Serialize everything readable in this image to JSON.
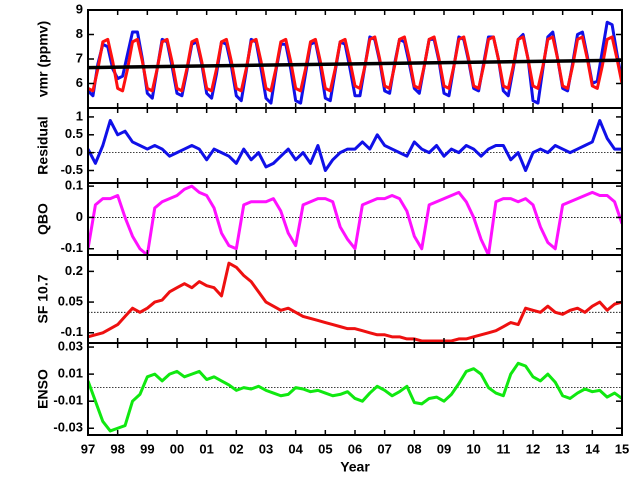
{
  "chart_data": [
    {
      "type": "line",
      "ylabel": "vmr (ppmv)",
      "x": [
        1997,
        1997.167,
        1997.333,
        1997.5,
        1997.667,
        1997.833,
        1998,
        1998.167,
        1998.333,
        1998.5,
        1998.667,
        1998.833,
        1999,
        1999.167,
        1999.333,
        1999.5,
        1999.667,
        1999.833,
        2000,
        2000.167,
        2000.333,
        2000.5,
        2000.667,
        2000.833,
        2001,
        2001.167,
        2001.333,
        2001.5,
        2001.667,
        2001.833,
        2002,
        2002.167,
        2002.333,
        2002.5,
        2002.667,
        2002.833,
        2003,
        2003.167,
        2003.333,
        2003.5,
        2003.667,
        2003.833,
        2004,
        2004.167,
        2004.333,
        2004.5,
        2004.667,
        2004.833,
        2005,
        2005.167,
        2005.333,
        2005.5,
        2005.667,
        2005.833,
        2006,
        2006.167,
        2006.333,
        2006.5,
        2006.667,
        2006.833,
        2007,
        2007.167,
        2007.333,
        2007.5,
        2007.667,
        2007.833,
        2008,
        2008.167,
        2008.333,
        2008.5,
        2008.667,
        2008.833,
        2009,
        2009.167,
        2009.333,
        2009.5,
        2009.667,
        2009.833,
        2010,
        2010.167,
        2010.333,
        2010.5,
        2010.667,
        2010.833,
        2011,
        2011.167,
        2011.333,
        2011.5,
        2011.667,
        2011.833,
        2012,
        2012.167,
        2012.333,
        2012.5,
        2012.667,
        2012.833,
        2013,
        2013.167,
        2013.333,
        2013.5,
        2013.667,
        2013.833,
        2014,
        2014.167,
        2014.333,
        2014.5,
        2014.667,
        2014.833,
        2015
      ],
      "series": [
        {
          "color": "#1010e8",
          "values": [
            5.7,
            5.5,
            6.8,
            7.6,
            7.5,
            6.6,
            6.2,
            6.3,
            7.2,
            8.1,
            8.1,
            7.0,
            5.6,
            5.4,
            6.6,
            7.8,
            7.7,
            6.7,
            5.6,
            5.5,
            6.5,
            7.6,
            7.7,
            6.8,
            5.6,
            5.4,
            6.4,
            7.7,
            7.6,
            6.7,
            5.5,
            5.3,
            6.5,
            7.8,
            7.7,
            6.6,
            5.4,
            5.2,
            6.5,
            7.6,
            7.6,
            6.6,
            5.3,
            5.2,
            6.4,
            7.6,
            7.7,
            6.7,
            5.4,
            5.3,
            6.5,
            7.7,
            7.6,
            6.6,
            5.5,
            5.5,
            6.7,
            7.9,
            7.8,
            6.9,
            5.7,
            5.6,
            6.8,
            7.8,
            7.7,
            6.8,
            5.8,
            5.6,
            6.7,
            7.8,
            7.8,
            6.9,
            5.6,
            5.5,
            6.7,
            7.9,
            7.8,
            6.9,
            5.8,
            5.7,
            6.8,
            7.9,
            7.9,
            7.0,
            5.7,
            5.5,
            6.6,
            7.8,
            8.0,
            7.0,
            5.3,
            5.2,
            6.6,
            7.9,
            8.1,
            7.0,
            5.8,
            5.7,
            6.8,
            8.0,
            8.1,
            7.1,
            6.0,
            6.1,
            7.3,
            8.5,
            8.4,
            7.2,
            6.1
          ]
        },
        {
          "color": "#ff1010",
          "values": [
            5.8,
            5.7,
            6.6,
            7.7,
            7.8,
            6.9,
            5.8,
            5.7,
            6.6,
            7.7,
            7.8,
            6.9,
            5.8,
            5.7,
            6.6,
            7.7,
            7.8,
            6.9,
            5.8,
            5.7,
            6.6,
            7.7,
            7.8,
            6.9,
            5.8,
            5.7,
            6.6,
            7.7,
            7.8,
            6.9,
            5.8,
            5.7,
            6.6,
            7.7,
            7.8,
            6.9,
            5.8,
            5.7,
            6.6,
            7.7,
            7.8,
            6.9,
            5.8,
            5.7,
            6.6,
            7.7,
            7.8,
            6.9,
            5.8,
            5.7,
            6.6,
            7.7,
            7.8,
            6.9,
            5.9,
            5.8,
            6.7,
            7.8,
            7.9,
            7.0,
            5.9,
            5.8,
            6.7,
            7.8,
            7.9,
            7.0,
            5.9,
            5.8,
            6.7,
            7.8,
            7.9,
            7.0,
            5.9,
            5.8,
            6.7,
            7.8,
            7.9,
            7.0,
            5.9,
            5.8,
            6.7,
            7.8,
            7.9,
            7.0,
            5.9,
            5.8,
            6.7,
            7.8,
            7.9,
            7.0,
            5.9,
            5.8,
            6.7,
            7.8,
            7.9,
            7.0,
            5.9,
            5.8,
            6.7,
            7.8,
            7.9,
            7.0,
            5.9,
            5.8,
            6.7,
            7.8,
            7.9,
            7.0,
            6.0
          ]
        },
        {
          "color": "#000000",
          "x": [
            1997,
            2015
          ],
          "values": [
            6.65,
            6.95
          ]
        }
      ],
      "xlim": [
        1997,
        2015
      ],
      "ylim": [
        5,
        9
      ],
      "yticks": [
        6,
        7,
        8,
        9
      ]
    },
    {
      "type": "line",
      "ylabel": "Residual",
      "x": [
        1997,
        1997.25,
        1997.5,
        1997.75,
        1998,
        1998.25,
        1998.5,
        1998.75,
        1999,
        1999.25,
        1999.5,
        1999.75,
        2000,
        2000.25,
        2000.5,
        2000.75,
        2001,
        2001.25,
        2001.5,
        2001.75,
        2002,
        2002.25,
        2002.5,
        2002.75,
        2003,
        2003.25,
        2003.5,
        2003.75,
        2004,
        2004.25,
        2004.5,
        2004.75,
        2005,
        2005.25,
        2005.5,
        2005.75,
        2006,
        2006.25,
        2006.5,
        2006.75,
        2007,
        2007.25,
        2007.5,
        2007.75,
        2008,
        2008.25,
        2008.5,
        2008.75,
        2009,
        2009.25,
        2009.5,
        2009.75,
        2010,
        2010.25,
        2010.5,
        2010.75,
        2011,
        2011.25,
        2011.5,
        2011.75,
        2012,
        2012.25,
        2012.5,
        2012.75,
        2013,
        2013.25,
        2013.5,
        2013.75,
        2014,
        2014.25,
        2014.5,
        2014.75,
        2015
      ],
      "series": [
        {
          "color": "#1010e8",
          "values": [
            0.1,
            -0.3,
            0.2,
            0.9,
            0.5,
            0.6,
            0.3,
            0.2,
            0.1,
            0.2,
            0.1,
            -0.1,
            0,
            0.1,
            0.2,
            0.1,
            -0.2,
            0.1,
            0,
            -0.1,
            -0.3,
            0.1,
            -0.2,
            0,
            -0.4,
            -0.3,
            -0.1,
            0.1,
            -0.2,
            0,
            -0.3,
            0.2,
            -0.5,
            -0.2,
            0,
            0.1,
            0.1,
            0.3,
            0.1,
            0.5,
            0.2,
            0.1,
            0,
            -0.1,
            0.3,
            0.1,
            0,
            0.2,
            -0.1,
            0.1,
            0,
            0.2,
            0.1,
            -0.1,
            0.1,
            0.2,
            0.2,
            -0.2,
            0,
            -0.5,
            0,
            0.1,
            0,
            0.2,
            0.1,
            0,
            0.1,
            0.2,
            0.3,
            0.9,
            0.4,
            0.1,
            0.1
          ]
        }
      ],
      "xlim": [
        1997,
        2015
      ],
      "ylim": [
        -0.85,
        1.25
      ],
      "yticks": [
        -0.5,
        0,
        0.5,
        1
      ],
      "refline": 0
    },
    {
      "type": "line",
      "ylabel": "QBO",
      "x": [
        1997,
        1997.25,
        1997.5,
        1997.75,
        1998,
        1998.25,
        1998.5,
        1998.75,
        1999,
        1999.25,
        1999.5,
        1999.75,
        2000,
        2000.25,
        2000.5,
        2000.75,
        2001,
        2001.25,
        2001.5,
        2001.75,
        2002,
        2002.25,
        2002.5,
        2002.75,
        2003,
        2003.25,
        2003.5,
        2003.75,
        2004,
        2004.25,
        2004.5,
        2004.75,
        2005,
        2005.25,
        2005.5,
        2005.75,
        2006,
        2006.25,
        2006.5,
        2006.75,
        2007,
        2007.25,
        2007.5,
        2007.75,
        2008,
        2008.25,
        2008.5,
        2008.75,
        2009,
        2009.25,
        2009.5,
        2009.75,
        2010,
        2010.25,
        2010.5,
        2010.75,
        2011,
        2011.25,
        2011.5,
        2011.75,
        2012,
        2012.25,
        2012.5,
        2012.75,
        2013,
        2013.25,
        2013.5,
        2013.75,
        2014,
        2014.25,
        2014.5,
        2014.75,
        2015
      ],
      "series": [
        {
          "color": "#ff10ff",
          "values": [
            -0.1,
            0.04,
            0.06,
            0.06,
            0.07,
            0.0,
            -0.06,
            -0.1,
            -0.12,
            0.03,
            0.05,
            0.06,
            0.07,
            0.09,
            0.1,
            0.08,
            0.07,
            0.03,
            -0.05,
            -0.09,
            -0.1,
            0.04,
            0.05,
            0.05,
            0.05,
            0.06,
            0.02,
            -0.05,
            -0.09,
            0.04,
            0.05,
            0.06,
            0.06,
            0.05,
            -0.03,
            -0.07,
            -0.1,
            0.04,
            0.05,
            0.06,
            0.06,
            0.07,
            0.06,
            0.02,
            -0.06,
            -0.1,
            0.04,
            0.05,
            0.06,
            0.07,
            0.08,
            0.05,
            0.0,
            -0.07,
            -0.12,
            0.05,
            0.06,
            0.06,
            0.05,
            0.06,
            0.04,
            -0.03,
            -0.08,
            -0.1,
            0.04,
            0.05,
            0.06,
            0.07,
            0.08,
            0.07,
            0.07,
            0.05,
            -0.02
          ]
        }
      ],
      "xlim": [
        1997,
        2015
      ],
      "ylim": [
        -0.12,
        0.11
      ],
      "yticks": [
        -0.1,
        0,
        0.1
      ],
      "refline": 0
    },
    {
      "type": "line",
      "ylabel": "SF 10.7",
      "x": [
        1997,
        1997.25,
        1997.5,
        1997.75,
        1998,
        1998.25,
        1998.5,
        1998.75,
        1999,
        1999.25,
        1999.5,
        1999.75,
        2000,
        2000.25,
        2000.5,
        2000.75,
        2001,
        2001.25,
        2001.5,
        2001.75,
        2002,
        2002.25,
        2002.5,
        2002.75,
        2003,
        2003.25,
        2003.5,
        2003.75,
        2004,
        2004.25,
        2004.5,
        2004.75,
        2005,
        2005.25,
        2005.5,
        2005.75,
        2006,
        2006.25,
        2006.5,
        2006.75,
        2007,
        2007.25,
        2007.5,
        2007.75,
        2008,
        2008.25,
        2008.5,
        2008.75,
        2009,
        2009.25,
        2009.5,
        2009.75,
        2010,
        2010.25,
        2010.5,
        2010.75,
        2011,
        2011.25,
        2011.5,
        2011.75,
        2012,
        2012.25,
        2012.5,
        2012.75,
        2013,
        2013.25,
        2013.5,
        2013.75,
        2014,
        2014.25,
        2014.5,
        2014.75,
        2015
      ],
      "series": [
        {
          "color": "#ee1010",
          "values": [
            -0.12,
            -0.11,
            -0.1,
            -0.08,
            -0.06,
            -0.02,
            0.02,
            0.0,
            0.02,
            0.05,
            0.06,
            0.1,
            0.12,
            0.14,
            0.12,
            0.15,
            0.13,
            0.12,
            0.08,
            0.24,
            0.22,
            0.18,
            0.15,
            0.1,
            0.05,
            0.03,
            0.01,
            0.02,
            0.0,
            -0.02,
            -0.03,
            -0.04,
            -0.05,
            -0.06,
            -0.07,
            -0.08,
            -0.08,
            -0.09,
            -0.1,
            -0.11,
            -0.11,
            -0.12,
            -0.12,
            -0.13,
            -0.13,
            -0.14,
            -0.14,
            -0.14,
            -0.14,
            -0.14,
            -0.13,
            -0.13,
            -0.12,
            -0.11,
            -0.1,
            -0.09,
            -0.07,
            -0.05,
            -0.06,
            0.02,
            0.01,
            0.0,
            0.03,
            0.0,
            -0.01,
            0.01,
            0.02,
            0.0,
            0.03,
            0.05,
            0.01,
            0.04,
            0.05
          ]
        }
      ],
      "xlim": [
        1997,
        2015
      ],
      "ylim": [
        -0.15,
        0.28
      ],
      "yticks": [
        -0.1,
        0.05,
        0.2
      ],
      "refline": 0
    },
    {
      "type": "line",
      "ylabel": "ENSO",
      "xlabel": "Year",
      "x": [
        1997,
        1997.25,
        1997.5,
        1997.75,
        1998,
        1998.25,
        1998.5,
        1998.75,
        1999,
        1999.25,
        1999.5,
        1999.75,
        2000,
        2000.25,
        2000.5,
        2000.75,
        2001,
        2001.25,
        2001.5,
        2001.75,
        2002,
        2002.25,
        2002.5,
        2002.75,
        2003,
        2003.25,
        2003.5,
        2003.75,
        2004,
        2004.25,
        2004.5,
        2004.75,
        2005,
        2005.25,
        2005.5,
        2005.75,
        2006,
        2006.25,
        2006.5,
        2006.75,
        2007,
        2007.25,
        2007.5,
        2007.75,
        2008,
        2008.25,
        2008.5,
        2008.75,
        2009,
        2009.25,
        2009.5,
        2009.75,
        2010,
        2010.25,
        2010.5,
        2010.75,
        2011,
        2011.25,
        2011.5,
        2011.75,
        2012,
        2012.25,
        2012.5,
        2012.75,
        2013,
        2013.25,
        2013.5,
        2013.75,
        2014,
        2014.25,
        2014.5,
        2014.75,
        2015
      ],
      "series": [
        {
          "color": "#10e810",
          "values": [
            0.005,
            -0.01,
            -0.025,
            -0.032,
            -0.03,
            -0.028,
            -0.01,
            -0.005,
            0.008,
            0.01,
            0.005,
            0.01,
            0.012,
            0.008,
            0.01,
            0.012,
            0.006,
            0.008,
            0.005,
            0.002,
            -0.002,
            0.0,
            -0.001,
            0.001,
            -0.002,
            -0.004,
            -0.006,
            -0.005,
            0.0,
            -0.001,
            -0.003,
            -0.002,
            -0.004,
            -0.006,
            -0.005,
            -0.003,
            -0.008,
            -0.01,
            -0.004,
            0.001,
            -0.002,
            -0.006,
            -0.003,
            0.001,
            -0.011,
            -0.012,
            -0.008,
            -0.007,
            -0.01,
            -0.005,
            0.003,
            0.012,
            0.014,
            0.01,
            0.0,
            -0.004,
            -0.006,
            0.01,
            0.018,
            0.016,
            0.008,
            0.005,
            0.01,
            0.004,
            -0.006,
            -0.008,
            -0.004,
            -0.001,
            -0.003,
            -0.002,
            -0.007,
            -0.004,
            -0.008
          ]
        }
      ],
      "xlim": [
        1997,
        2015
      ],
      "ylim": [
        -0.035,
        0.033
      ],
      "yticks": [
        -0.03,
        -0.01,
        0.01,
        0.03
      ],
      "refline": 0,
      "xticks": [
        {
          "value": 1997,
          "label": "97"
        },
        {
          "value": 1998,
          "label": "98"
        },
        {
          "value": 1999,
          "label": "99"
        },
        {
          "value": 2000,
          "label": "00"
        },
        {
          "value": 2001,
          "label": "01"
        },
        {
          "value": 2002,
          "label": "02"
        },
        {
          "value": 2003,
          "label": "03"
        },
        {
          "value": 2004,
          "label": "04"
        },
        {
          "value": 2005,
          "label": "05"
        },
        {
          "value": 2006,
          "label": "06"
        },
        {
          "value": 2007,
          "label": "07"
        },
        {
          "value": 2008,
          "label": "08"
        },
        {
          "value": 2009,
          "label": "09"
        },
        {
          "value": 2010,
          "label": "10"
        },
        {
          "value": 2011,
          "label": "11"
        },
        {
          "value": 2012,
          "label": "12"
        },
        {
          "value": 2013,
          "label": "13"
        },
        {
          "value": 2014,
          "label": "14"
        },
        {
          "value": 2015,
          "label": "15"
        }
      ]
    }
  ]
}
